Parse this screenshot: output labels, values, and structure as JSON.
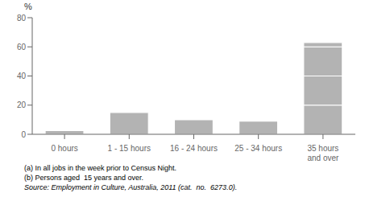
{
  "chart_data": {
    "type": "bar",
    "stacked": true,
    "grid": false,
    "y_label": "%",
    "categories": [
      "0 hours",
      "1 - 15 hours",
      "16 - 24 hours",
      "25 - 34 hours",
      "35 hours\nand over"
    ],
    "series": [
      {
        "color": "#b3b3b3",
        "values": [
          2.5,
          0,
          0,
          0,
          20
        ]
      },
      {
        "color": "#b3b3b3",
        "values": [
          0,
          15,
          0,
          0,
          20
        ]
      },
      {
        "color": "#b3b3b3",
        "values": [
          0,
          0,
          10,
          0,
          20
        ]
      },
      {
        "color": "#b3b3b3",
        "values": [
          0,
          0,
          0,
          9,
          3
        ]
      }
    ],
    "ylim": [
      0,
      80
    ],
    "yticks": [
      0,
      20,
      40,
      60,
      80
    ],
    "annotations": [
      "(a) In all jobs in the week prior to Census Night.",
      "(b) Persons aged  15 years and over.",
      "Source: Employment in Culture, Australia, 2011 (cat.  no.  6273.0)."
    ]
  }
}
